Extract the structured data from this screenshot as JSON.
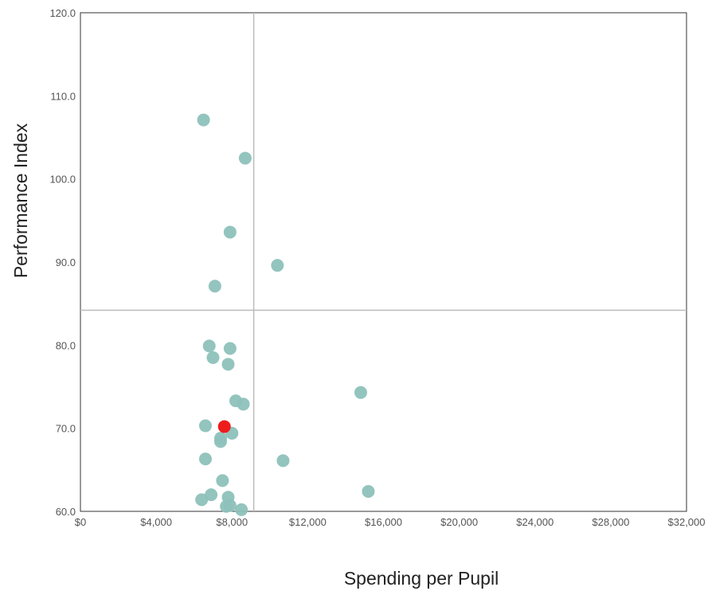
{
  "chart_data": {
    "type": "scatter",
    "title": "",
    "xlabel": "Spending per Pupil",
    "ylabel": "Performance Index",
    "xlim": [
      0,
      32000
    ],
    "ylim": [
      60,
      120
    ],
    "x_ticks": [
      0,
      4000,
      8000,
      12000,
      16000,
      20000,
      24000,
      28000,
      32000
    ],
    "x_tick_labels": [
      "$0",
      "$4,000",
      "$8,000",
      "$12,000",
      "$16,000",
      "$20,000",
      "$24,000",
      "$28,000",
      "$32,000"
    ],
    "y_ticks": [
      60,
      70,
      80,
      90,
      100,
      110,
      120
    ],
    "y_tick_labels": [
      "60.0",
      "70.0",
      "80.0",
      "90.0",
      "100.0",
      "110.0",
      "120.0"
    ],
    "grid": false,
    "reference_lines": {
      "x": 9150,
      "y": 84.2
    },
    "colors": {
      "point": "#8dc1bb",
      "highlight": "#ee1c1c",
      "reference_line": "#bbbbbb",
      "frame": "#333333"
    },
    "series": [
      {
        "points": [
          {
            "x": 6500,
            "y": 107.1
          },
          {
            "x": 8700,
            "y": 102.5
          },
          {
            "x": 7900,
            "y": 93.6
          },
          {
            "x": 10400,
            "y": 89.6
          },
          {
            "x": 7100,
            "y": 87.1
          },
          {
            "x": 6800,
            "y": 79.9
          },
          {
            "x": 7900,
            "y": 79.6
          },
          {
            "x": 7000,
            "y": 78.5
          },
          {
            "x": 7800,
            "y": 77.7
          },
          {
            "x": 14800,
            "y": 74.3
          },
          {
            "x": 8200,
            "y": 73.3
          },
          {
            "x": 8600,
            "y": 72.9
          },
          {
            "x": 6600,
            "y": 70.3
          },
          {
            "x": 8000,
            "y": 69.4
          },
          {
            "x": 7400,
            "y": 68.8
          },
          {
            "x": 7400,
            "y": 68.4
          },
          {
            "x": 6600,
            "y": 66.3
          },
          {
            "x": 10700,
            "y": 66.1
          },
          {
            "x": 7500,
            "y": 63.7
          },
          {
            "x": 15200,
            "y": 62.4
          },
          {
            "x": 6900,
            "y": 62.0
          },
          {
            "x": 7800,
            "y": 61.7
          },
          {
            "x": 6400,
            "y": 61.4
          },
          {
            "x": 7900,
            "y": 60.7
          },
          {
            "x": 7700,
            "y": 60.6
          },
          {
            "x": 8500,
            "y": 60.2
          }
        ]
      },
      {
        "highlight": true,
        "points": [
          {
            "x": 7600,
            "y": 70.2
          }
        ]
      }
    ]
  }
}
